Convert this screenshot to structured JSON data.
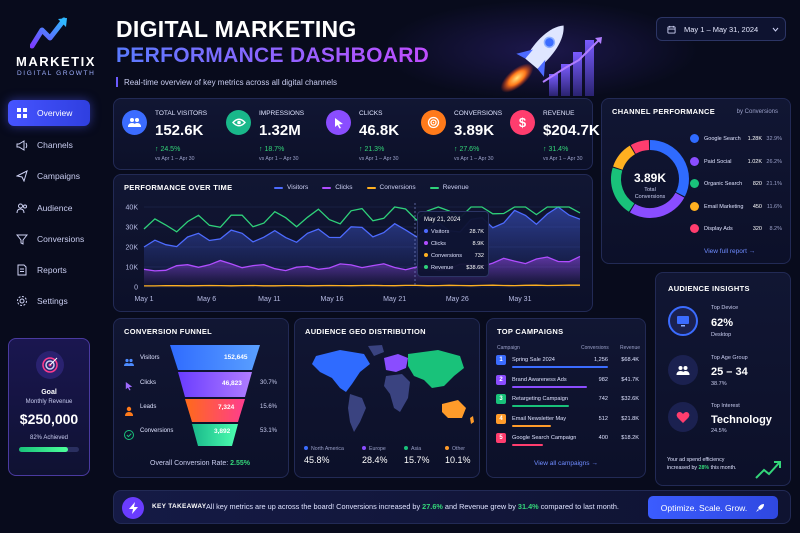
{
  "brand": {
    "name": "MARKETIX",
    "tagline": "DIGITAL GROWTH"
  },
  "header": {
    "title_line1": "DIGITAL MARKETING",
    "title_line2": "PERFORMANCE DASHBOARD",
    "subtitle": "Real-time overview of key metrics across all digital channels",
    "date_range": "May 1 – May 31, 2024"
  },
  "sidebar": {
    "items": [
      {
        "label": "Overview"
      },
      {
        "label": "Channels"
      },
      {
        "label": "Campaigns"
      },
      {
        "label": "Audience"
      },
      {
        "label": "Conversions"
      },
      {
        "label": "Reports"
      },
      {
        "label": "Settings"
      }
    ]
  },
  "goal": {
    "label": "Goal",
    "sublabel": "Monthly Revenue",
    "value": "$250,000",
    "achieved": "82% Achieved",
    "progress": 0.82
  },
  "kpis": [
    {
      "label": "TOTAL VISITORS",
      "value": "152.6K",
      "change": "↑ 24.5%",
      "compare": "vs Apr 1 – Apr 30",
      "color": "#3b6cff",
      "icon": "users-icon"
    },
    {
      "label": "IMPRESSIONS",
      "value": "1.32M",
      "change": "↑ 18.7%",
      "compare": "vs Apr 1 – Apr 30",
      "color": "#19b88a",
      "icon": "eye-icon"
    },
    {
      "label": "CLICKS",
      "value": "46.8K",
      "change": "↑ 21.3%",
      "compare": "vs Apr 1 – Apr 30",
      "color": "#8a4dff",
      "icon": "cursor-icon"
    },
    {
      "label": "CONVERSIONS",
      "value": "3.89K",
      "change": "↑ 27.6%",
      "compare": "vs Apr 1 – Apr 30",
      "color": "#ff7a1a",
      "icon": "target-icon"
    },
    {
      "label": "REVENUE",
      "value": "$204.7K",
      "change": "↑ 31.4%",
      "compare": "vs Apr 1 – Apr 30",
      "color": "#ff3d6e",
      "icon": "dollar-icon"
    }
  ],
  "channel_performance": {
    "title": "CHANNEL PERFORMANCE",
    "subtitle": "by Conversions",
    "total_value": "3.89K",
    "total_label1": "Total",
    "total_label2": "Conversions",
    "link": "View full report →",
    "channels": [
      {
        "name": "Google Search",
        "value": "1.28K",
        "pct": "32.9%",
        "share": 32.9,
        "color": "#2f6bff"
      },
      {
        "name": "Paid Social",
        "value": "1.02K",
        "pct": "26.2%",
        "share": 26.2,
        "color": "#8a4dff"
      },
      {
        "name": "Organic Search",
        "value": "820",
        "pct": "21.1%",
        "share": 21.1,
        "color": "#19c27a"
      },
      {
        "name": "Email Marketing",
        "value": "450",
        "pct": "11.6%",
        "share": 11.6,
        "color": "#ffb020"
      },
      {
        "name": "Display Ads",
        "value": "320",
        "pct": "8.2%",
        "share": 8.2,
        "color": "#ff3d6e"
      }
    ]
  },
  "chart_data": {
    "type": "area",
    "title": "PERFORMANCE OVER TIME",
    "categories": [
      "May 1",
      "May 6",
      "May 11",
      "May 16",
      "May 21",
      "May 26",
      "May 31"
    ],
    "yticks": [
      "40K",
      "30K",
      "20K",
      "10K",
      "0"
    ],
    "ylim": [
      0,
      40000
    ],
    "series": [
      {
        "name": "Visitors",
        "color": "#4d6bff",
        "values": [
          20000,
          26000,
          25000,
          28000,
          28700,
          34000,
          38000
        ]
      },
      {
        "name": "Clicks",
        "color": "#b04dff",
        "values": [
          8000,
          12000,
          9000,
          11000,
          8900,
          13000,
          14000
        ]
      },
      {
        "name": "Conversions",
        "color": "#ffb020",
        "values": [
          600,
          700,
          650,
          720,
          732,
          800,
          850
        ]
      },
      {
        "name": "Revenue",
        "color": "#2fd17a",
        "values": [
          30000,
          33000,
          34000,
          36000,
          38600,
          40000,
          42000
        ]
      }
    ],
    "tooltip": {
      "date": "May 21, 2024",
      "rows": [
        {
          "label": "Visitors",
          "value": "28.7K",
          "color": "#4d6bff"
        },
        {
          "label": "Clicks",
          "value": "8.9K",
          "color": "#b04dff"
        },
        {
          "label": "Conversions",
          "value": "732",
          "color": "#ffb020"
        },
        {
          "label": "Revenue",
          "value": "$38.6K",
          "color": "#2fd17a"
        }
      ]
    }
  },
  "funnel": {
    "title": "CONVERSION FUNNEL",
    "stages": [
      {
        "label": "Visitors",
        "value": "152,645",
        "pct": ""
      },
      {
        "label": "Clicks",
        "value": "46,823",
        "pct": "30.7%"
      },
      {
        "label": "Leads",
        "value": "7,324",
        "pct": "15.6%"
      },
      {
        "label": "Conversions",
        "value": "3,892",
        "pct": "53.1%"
      }
    ],
    "overall_label": "Overall Conversion Rate:",
    "overall_value": "2.55%"
  },
  "geo": {
    "title": "AUDIENCE GEO DISTRIBUTION",
    "regions": [
      {
        "name": "North America",
        "value": "45.8%",
        "color": "#3b6cff"
      },
      {
        "name": "Europe",
        "value": "28.4%",
        "color": "#8a4dff"
      },
      {
        "name": "Asia",
        "value": "15.7%",
        "color": "#19c27a"
      },
      {
        "name": "Other",
        "value": "10.1%",
        "color": "#ff9b2a"
      }
    ]
  },
  "campaigns": {
    "title": "TOP CAMPAIGNS",
    "col_campaign": "Campaign",
    "col_conversions": "Conversions",
    "col_revenue": "Revenue",
    "rows": [
      {
        "rank": "1",
        "name": "Spring Sale 2024",
        "conversions": "1,256",
        "revenue": "$68.4K",
        "color": "#3b6cff",
        "bar": 1.0
      },
      {
        "rank": "2",
        "name": "Brand Awareness Ads",
        "conversions": "982",
        "revenue": "$41.7K",
        "color": "#8a4dff",
        "bar": 0.78
      },
      {
        "rank": "3",
        "name": "Retargeting Campaign",
        "conversions": "742",
        "revenue": "$32.6K",
        "color": "#19c27a",
        "bar": 0.59
      },
      {
        "rank": "4",
        "name": "Email Newsletter May",
        "conversions": "512",
        "revenue": "$21.8K",
        "color": "#ff9b2a",
        "bar": 0.41
      },
      {
        "rank": "5",
        "name": "Google Search Campaign",
        "conversions": "400",
        "revenue": "$18.2K",
        "color": "#ff3d6e",
        "bar": 0.32
      }
    ],
    "link": "View all campaigns →"
  },
  "audience": {
    "title": "AUDIENCE INSIGHTS",
    "device_label": "Top Device",
    "device_value": "62%",
    "device_sub": "Desktop",
    "age_label": "Top Age Group",
    "age_value": "25 – 34",
    "age_sub": "38.7%",
    "interest_label": "Top Interest",
    "interest_value": "Technology",
    "interest_sub": "24.5%",
    "efficiency_text1": "Your ad spend efficiency",
    "efficiency_text2a": "increased by ",
    "efficiency_pct": "28%",
    "efficiency_text2b": " this month."
  },
  "takeaway": {
    "label": "KEY TAKEAWAY",
    "text_a": "All key metrics are up across the board! Conversions increased by ",
    "pct1": "27.6%",
    "text_b": " and Revenue grew by ",
    "pct2": "31.4%",
    "text_c": " compared to last month.",
    "button": "Optimize. Scale. Grow."
  }
}
